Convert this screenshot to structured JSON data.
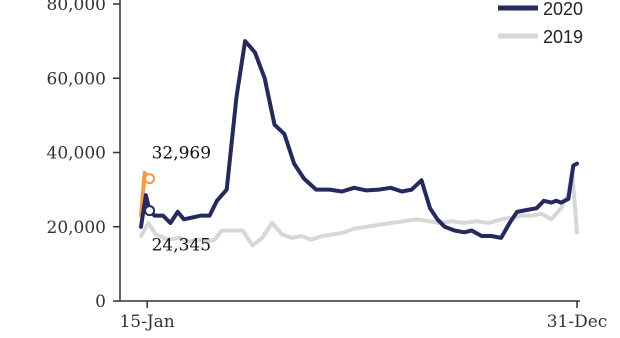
{
  "chart_data": {
    "type": "line",
    "y_ticks": [
      "0",
      "20,000",
      "40,000",
      "60,000",
      "80,000"
    ],
    "ylim": [
      0,
      80000
    ],
    "x_tick_labels": [
      "15-Jan",
      "31-Dec"
    ],
    "x_tick_dates": [
      "2020-01-15",
      "2020-12-31"
    ],
    "x_domain_dates": [
      "2020-01-10",
      "2020-12-31"
    ],
    "legend": {
      "placement": "top-right"
    },
    "grid": false,
    "series": [
      {
        "name": "2020",
        "color": "#25295e",
        "points": [
          [
            "2020-01-10",
            20000
          ],
          [
            "2020-01-14",
            28500
          ],
          [
            "2020-01-17",
            24345
          ],
          [
            "2020-01-21",
            23000
          ],
          [
            "2020-01-28",
            23000
          ],
          [
            "2020-02-03",
            21000
          ],
          [
            "2020-02-09",
            24000
          ],
          [
            "2020-02-14",
            22000
          ],
          [
            "2020-02-21",
            22500
          ],
          [
            "2020-02-28",
            23000
          ],
          [
            "2020-03-06",
            23000
          ],
          [
            "2020-03-12",
            27000
          ],
          [
            "2020-03-20",
            30000
          ],
          [
            "2020-03-28",
            55000
          ],
          [
            "2020-04-04",
            70000
          ],
          [
            "2020-04-12",
            67000
          ],
          [
            "2020-04-20",
            60000
          ],
          [
            "2020-04-28",
            47500
          ],
          [
            "2020-05-06",
            45000
          ],
          [
            "2020-05-14",
            37000
          ],
          [
            "2020-05-22",
            33000
          ],
          [
            "2020-06-01",
            30000
          ],
          [
            "2020-06-12",
            30000
          ],
          [
            "2020-06-22",
            29500
          ],
          [
            "2020-07-02",
            30500
          ],
          [
            "2020-07-12",
            29800
          ],
          [
            "2020-07-22",
            30000
          ],
          [
            "2020-08-01",
            30500
          ],
          [
            "2020-08-10",
            29500
          ],
          [
            "2020-08-18",
            30000
          ],
          [
            "2020-08-26",
            32500
          ],
          [
            "2020-09-02",
            25000
          ],
          [
            "2020-09-08",
            22000
          ],
          [
            "2020-09-14",
            20000
          ],
          [
            "2020-09-22",
            19000
          ],
          [
            "2020-09-30",
            18500
          ],
          [
            "2020-10-06",
            19000
          ],
          [
            "2020-10-14",
            17500
          ],
          [
            "2020-10-22",
            17500
          ],
          [
            "2020-10-30",
            17000
          ],
          [
            "2020-11-06",
            21000
          ],
          [
            "2020-11-12",
            24000
          ],
          [
            "2020-11-20",
            24500
          ],
          [
            "2020-11-28",
            25000
          ],
          [
            "2020-12-04",
            27000
          ],
          [
            "2020-12-10",
            26500
          ],
          [
            "2020-12-14",
            27000
          ],
          [
            "2020-12-18",
            26500
          ],
          [
            "2020-12-24",
            27500
          ],
          [
            "2020-12-28",
            36500
          ],
          [
            "2020-12-31",
            37000
          ]
        ]
      },
      {
        "name": "2019",
        "color": "#d7d7d7",
        "points": [
          [
            "2020-01-10",
            17500
          ],
          [
            "2020-01-16",
            21000
          ],
          [
            "2020-01-22",
            18000
          ],
          [
            "2020-02-01",
            16500
          ],
          [
            "2020-02-10",
            17000
          ],
          [
            "2020-02-18",
            16000
          ],
          [
            "2020-02-26",
            16500
          ],
          [
            "2020-03-04",
            16000
          ],
          [
            "2020-03-10",
            16500
          ],
          [
            "2020-03-16",
            19000
          ],
          [
            "2020-03-24",
            19000
          ],
          [
            "2020-04-02",
            19000
          ],
          [
            "2020-04-10",
            15000
          ],
          [
            "2020-04-18",
            17000
          ],
          [
            "2020-04-26",
            21000
          ],
          [
            "2020-05-04",
            18000
          ],
          [
            "2020-05-12",
            17000
          ],
          [
            "2020-05-20",
            17500
          ],
          [
            "2020-05-28",
            16500
          ],
          [
            "2020-06-06",
            17500
          ],
          [
            "2020-06-16",
            18000
          ],
          [
            "2020-06-24",
            18500
          ],
          [
            "2020-07-02",
            19500
          ],
          [
            "2020-07-12",
            20000
          ],
          [
            "2020-07-22",
            20500
          ],
          [
            "2020-08-01",
            21000
          ],
          [
            "2020-08-12",
            21500
          ],
          [
            "2020-08-22",
            22000
          ],
          [
            "2020-09-01",
            21500
          ],
          [
            "2020-09-10",
            21000
          ],
          [
            "2020-09-20",
            21500
          ],
          [
            "2020-09-30",
            21000
          ],
          [
            "2020-10-10",
            21500
          ],
          [
            "2020-10-20",
            21000
          ],
          [
            "2020-10-30",
            22000
          ],
          [
            "2020-11-08",
            22500
          ],
          [
            "2020-11-16",
            23000
          ],
          [
            "2020-11-24",
            23000
          ],
          [
            "2020-12-02",
            23500
          ],
          [
            "2020-12-10",
            22000
          ],
          [
            "2020-12-18",
            25000
          ],
          [
            "2020-12-24",
            29000
          ],
          [
            "2020-12-27",
            35000
          ],
          [
            "2020-12-31",
            18500
          ]
        ]
      },
      {
        "color": "#f09a4a",
        "points": [
          [
            "2020-01-10",
            23000
          ],
          [
            "2020-01-13",
            34500
          ],
          [
            "2020-01-17",
            32969
          ]
        ]
      }
    ],
    "annotations": [
      {
        "text": "32,969",
        "date": "2020-01-17",
        "value": 32969,
        "color": "#f09a4a",
        "marker": "open-circle"
      },
      {
        "text": "24,345",
        "date": "2020-01-17",
        "value": 24345,
        "color": "#25295e",
        "marker": "open-circle"
      }
    ]
  }
}
